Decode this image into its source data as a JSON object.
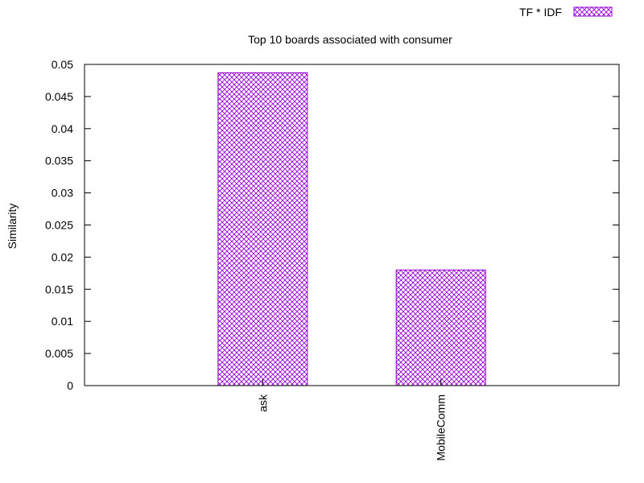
{
  "chart_data": {
    "type": "bar",
    "title": "Top 10 boards associated with consumer",
    "xlabel": "",
    "ylabel": "Similarity",
    "categories": [
      "ask",
      "MobileComm"
    ],
    "series": [
      {
        "name": "TF * IDF",
        "values": [
          0.0487,
          0.018
        ]
      }
    ],
    "ylim": [
      0,
      0.05
    ],
    "yticks": [
      "0",
      "0.005",
      "0.01",
      "0.015",
      "0.02",
      "0.025",
      "0.03",
      "0.035",
      "0.04",
      "0.045",
      "0.05"
    ],
    "grid": false,
    "legend_position": "top-right",
    "colors": {
      "bar": "#9400d3",
      "axis": "#000000"
    }
  }
}
